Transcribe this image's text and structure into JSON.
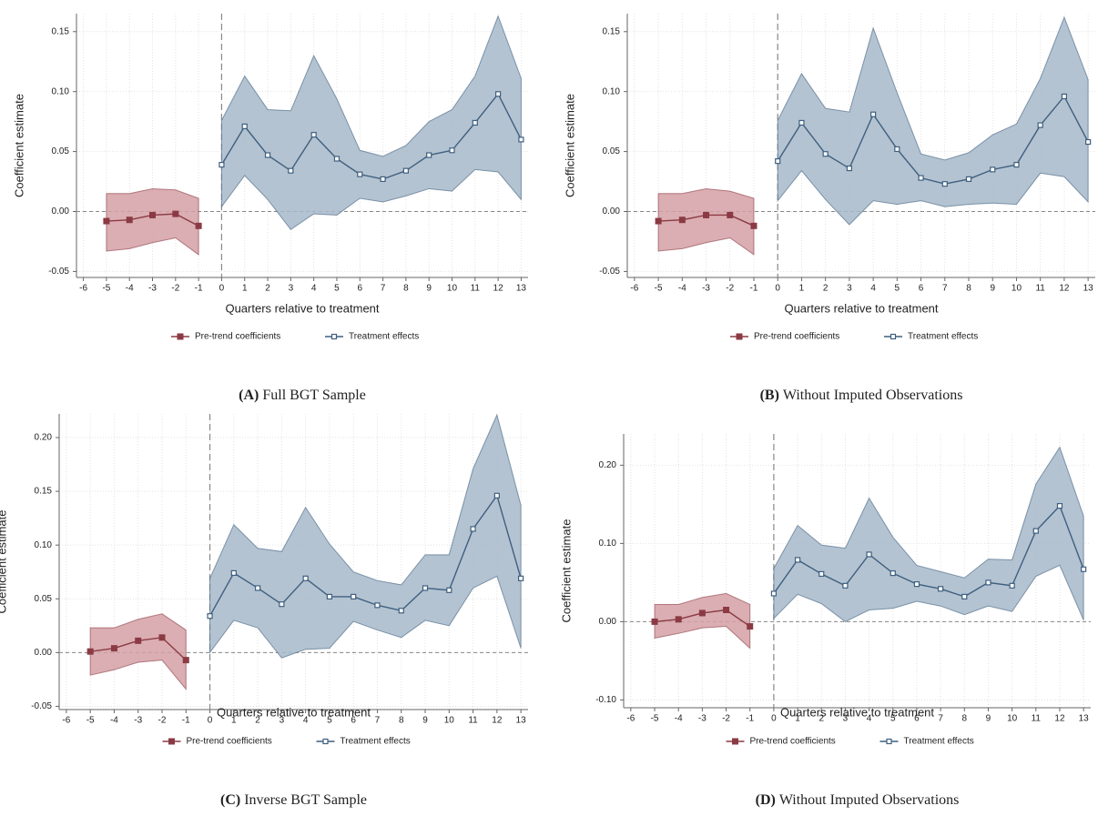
{
  "chart_data": [
    {
      "type": "line",
      "panel_label": "(A)",
      "caption": "Full BGT Sample",
      "xlabel": "Quarters relative to treatment",
      "ylabel": "Coefficient estimate",
      "xlim": [
        -6.3,
        13.3
      ],
      "ylim": [
        -0.055,
        0.165
      ],
      "xticks": [
        -6,
        -5,
        -4,
        -3,
        -2,
        -1,
        0,
        1,
        2,
        3,
        4,
        5,
        6,
        7,
        8,
        9,
        10,
        11,
        12,
        13
      ],
      "yticks": [
        -0.05,
        {
          "value": 0,
          "label": "0.00"
        },
        0.05,
        {
          "value": 0.1,
          "label": "0.10"
        },
        0.15
      ],
      "grid": true,
      "xline": 0,
      "yline": 0,
      "legend": "bottom",
      "series": [
        {
          "name": "Pre-trend coefficients",
          "color": "#8b3a44",
          "band_color": "#d4a0a5",
          "marker": "filled-square",
          "x": [
            -5,
            -4,
            -3,
            -2,
            -1
          ],
          "values": [
            -0.008,
            -0.007,
            -0.003,
            -0.002,
            -0.012
          ],
          "lower": [
            -0.033,
            -0.031,
            -0.026,
            -0.022,
            -0.036
          ],
          "upper": [
            0.015,
            0.015,
            0.019,
            0.018,
            0.011
          ]
        },
        {
          "name": "Treatment effects",
          "color": "#3f5f7f",
          "band_color": "#a6b8c9",
          "marker": "hollow-square",
          "x": [
            0,
            1,
            2,
            3,
            4,
            5,
            6,
            7,
            8,
            9,
            10,
            11,
            12,
            13
          ],
          "values": [
            0.039,
            0.071,
            0.047,
            0.034,
            0.064,
            0.044,
            0.031,
            0.027,
            0.034,
            0.047,
            0.051,
            0.074,
            0.098,
            0.06
          ],
          "lower": [
            0.004,
            0.03,
            0.01,
            -0.015,
            -0.002,
            -0.003,
            0.011,
            0.008,
            0.013,
            0.019,
            0.017,
            0.035,
            0.033,
            0.01
          ],
          "upper": [
            0.076,
            0.113,
            0.085,
            0.084,
            0.13,
            0.094,
            0.051,
            0.046,
            0.055,
            0.075,
            0.085,
            0.113,
            0.163,
            0.111
          ]
        }
      ]
    },
    {
      "type": "line",
      "panel_label": "(B)",
      "caption": "Without Imputed Observations",
      "xlabel": "Quarters relative to treatment",
      "ylabel": "Coefficient estimate",
      "xlim": [
        -6.3,
        13.3
      ],
      "ylim": [
        -0.055,
        0.165
      ],
      "xticks": [
        -6,
        -5,
        -4,
        -3,
        -2,
        -1,
        0,
        1,
        2,
        3,
        4,
        5,
        6,
        7,
        8,
        9,
        10,
        11,
        12,
        13
      ],
      "yticks": [
        -0.05,
        {
          "value": 0,
          "label": "0.00"
        },
        0.05,
        {
          "value": 0.1,
          "label": "0.10"
        },
        0.15
      ],
      "grid": true,
      "xline": 0,
      "yline": 0,
      "legend": "bottom",
      "series": [
        {
          "name": "Pre-trend coefficients",
          "color": "#8b3a44",
          "band_color": "#d4a0a5",
          "marker": "filled-square",
          "x": [
            -5,
            -4,
            -3,
            -2,
            -1
          ],
          "values": [
            -0.008,
            -0.007,
            -0.003,
            -0.003,
            -0.012
          ],
          "lower": [
            -0.033,
            -0.031,
            -0.026,
            -0.022,
            -0.036
          ],
          "upper": [
            0.015,
            0.015,
            0.019,
            0.017,
            0.011
          ]
        },
        {
          "name": "Treatment effects",
          "color": "#3f5f7f",
          "band_color": "#a6b8c9",
          "marker": "hollow-square",
          "x": [
            0,
            1,
            2,
            3,
            4,
            5,
            6,
            7,
            8,
            9,
            10,
            11,
            12,
            13
          ],
          "values": [
            0.042,
            0.074,
            0.048,
            0.036,
            0.081,
            0.052,
            0.028,
            0.023,
            0.027,
            0.035,
            0.039,
            0.072,
            0.096,
            0.058
          ],
          "lower": [
            0.009,
            0.034,
            0.01,
            -0.011,
            0.009,
            0.006,
            0.009,
            0.004,
            0.006,
            0.007,
            0.006,
            0.032,
            0.029,
            0.008
          ],
          "upper": [
            0.076,
            0.115,
            0.086,
            0.083,
            0.153,
            0.099,
            0.048,
            0.043,
            0.049,
            0.064,
            0.073,
            0.111,
            0.162,
            0.11
          ]
        }
      ]
    },
    {
      "type": "line",
      "panel_label": "(C)",
      "caption": "Inverse BGT Sample",
      "xlabel": "Quarters relative to treatment",
      "ylabel": "Coefficient estimate",
      "xlim": [
        -6.3,
        13.3
      ],
      "ylim": [
        -0.053,
        0.222
      ],
      "xticks": [
        -6,
        -5,
        -4,
        -3,
        -2,
        -1,
        0,
        1,
        2,
        3,
        4,
        5,
        6,
        7,
        8,
        9,
        10,
        11,
        12,
        13
      ],
      "yticks": [
        -0.05,
        {
          "value": 0,
          "label": "0.00"
        },
        0.05,
        {
          "value": 0.1,
          "label": "0.10"
        },
        0.15,
        {
          "value": 0.2,
          "label": "0.20"
        }
      ],
      "grid": true,
      "xline": 0,
      "yline": 0,
      "legend": "bottom",
      "series": [
        {
          "name": "Pre-trend coefficients",
          "color": "#8b3a44",
          "band_color": "#d4a0a5",
          "marker": "filled-square",
          "x": [
            -5,
            -4,
            -3,
            -2,
            -1
          ],
          "values": [
            0.001,
            0.004,
            0.011,
            0.014,
            -0.007
          ],
          "lower": [
            -0.021,
            -0.016,
            -0.009,
            -0.007,
            -0.034
          ],
          "upper": [
            0.023,
            0.023,
            0.031,
            0.036,
            0.021
          ]
        },
        {
          "name": "Treatment effects",
          "color": "#3f5f7f",
          "band_color": "#a6b8c9",
          "marker": "hollow-square",
          "x": [
            0,
            1,
            2,
            3,
            4,
            5,
            6,
            7,
            8,
            9,
            10,
            11,
            12,
            13
          ],
          "values": [
            0.034,
            0.074,
            0.06,
            0.045,
            0.069,
            0.052,
            0.052,
            0.044,
            0.039,
            0.06,
            0.058,
            0.115,
            0.146,
            0.069
          ],
          "lower": [
            0.0,
            0.03,
            0.023,
            -0.005,
            0.003,
            0.004,
            0.029,
            0.021,
            0.014,
            0.03,
            0.025,
            0.06,
            0.071,
            0.004
          ],
          "upper": [
            0.069,
            0.119,
            0.097,
            0.094,
            0.135,
            0.101,
            0.075,
            0.067,
            0.063,
            0.091,
            0.091,
            0.171,
            0.221,
            0.137
          ]
        }
      ]
    },
    {
      "type": "line",
      "panel_label": "(D)",
      "caption": "Without Imputed Observations",
      "xlabel": "Quarters relative to treatment",
      "ylabel": "Coefficient estimate",
      "xlim": [
        -6.3,
        13.3
      ],
      "ylim": [
        -0.11,
        0.24
      ],
      "xticks": [
        -6,
        -5,
        -4,
        -3,
        -2,
        -1,
        0,
        1,
        2,
        3,
        4,
        5,
        6,
        7,
        8,
        9,
        10,
        11,
        12,
        13
      ],
      "yticks": [
        {
          "value": -0.1,
          "label": "-0.10"
        },
        {
          "value": 0,
          "label": "0.00"
        },
        {
          "value": 0.1,
          "label": "0.10"
        },
        {
          "value": 0.2,
          "label": "0.20"
        }
      ],
      "grid": true,
      "xline": 0,
      "yline": 0,
      "legend": "bottom",
      "series": [
        {
          "name": "Pre-trend coefficients",
          "color": "#8b3a44",
          "band_color": "#d4a0a5",
          "marker": "filled-square",
          "x": [
            -5,
            -4,
            -3,
            -2,
            -1
          ],
          "values": [
            0.0,
            0.003,
            0.011,
            0.015,
            -0.006
          ],
          "lower": [
            -0.021,
            -0.015,
            -0.008,
            -0.006,
            -0.034
          ],
          "upper": [
            0.022,
            0.022,
            0.031,
            0.036,
            0.022
          ]
        },
        {
          "name": "Treatment effects",
          "color": "#3f5f7f",
          "band_color": "#a6b8c9",
          "marker": "hollow-square",
          "x": [
            0,
            1,
            2,
            3,
            4,
            5,
            6,
            7,
            8,
            9,
            10,
            11,
            12,
            13
          ],
          "values": [
            0.036,
            0.079,
            0.061,
            0.046,
            0.086,
            0.062,
            0.048,
            0.042,
            0.032,
            0.05,
            0.046,
            0.116,
            0.148,
            0.067
          ],
          "lower": [
            0.004,
            0.035,
            0.023,
            0.0,
            0.015,
            0.017,
            0.026,
            0.02,
            0.009,
            0.02,
            0.013,
            0.058,
            0.072,
            0.002
          ],
          "upper": [
            0.068,
            0.123,
            0.098,
            0.094,
            0.158,
            0.108,
            0.072,
            0.064,
            0.056,
            0.08,
            0.079,
            0.176,
            0.223,
            0.135
          ]
        }
      ]
    }
  ]
}
